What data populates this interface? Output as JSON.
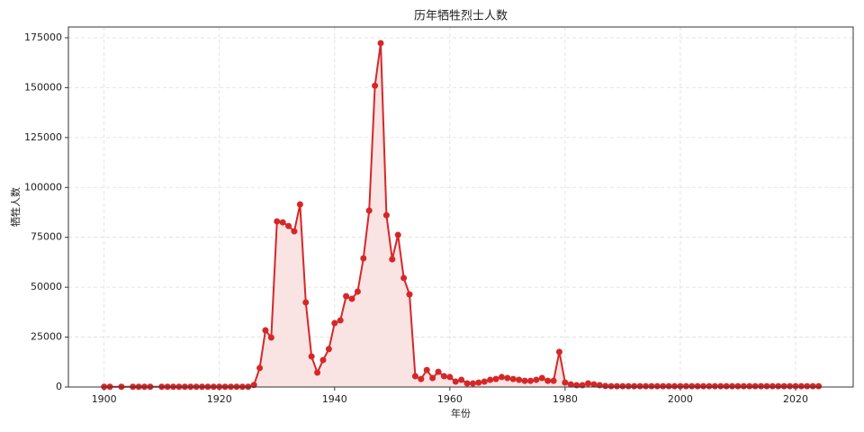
{
  "chart_data": {
    "type": "line",
    "title": "历年牺牲烈士人数",
    "x_label": "年份",
    "y_label": "牺牲人数",
    "x": [
      1900,
      1901,
      1903,
      1905,
      1906,
      1907,
      1908,
      1910,
      1911,
      1912,
      1913,
      1914,
      1915,
      1916,
      1917,
      1918,
      1919,
      1920,
      1921,
      1922,
      1923,
      1924,
      1925,
      1926,
      1927,
      1928,
      1929,
      1930,
      1931,
      1932,
      1933,
      1934,
      1935,
      1936,
      1937,
      1938,
      1939,
      1940,
      1941,
      1942,
      1943,
      1944,
      1945,
      1946,
      1947,
      1948,
      1949,
      1950,
      1951,
      1952,
      1953,
      1954,
      1955,
      1956,
      1957,
      1958,
      1959,
      1960,
      1961,
      1962,
      1963,
      1964,
      1965,
      1966,
      1967,
      1968,
      1969,
      1970,
      1971,
      1972,
      1973,
      1974,
      1975,
      1976,
      1977,
      1978,
      1979,
      1980,
      1981,
      1982,
      1983,
      1984,
      1985,
      1986,
      1987,
      1988,
      1989,
      1990,
      1991,
      1992,
      1993,
      1994,
      1995,
      1996,
      1997,
      1998,
      1999,
      2000,
      2001,
      2002,
      2003,
      2004,
      2005,
      2006,
      2007,
      2008,
      2009,
      2010,
      2011,
      2012,
      2013,
      2014,
      2015,
      2016,
      2017,
      2018,
      2019,
      2020,
      2021,
      2022,
      2023,
      2024
    ],
    "series": [
      {
        "name": "牺牲人数",
        "color": "#d62728",
        "fill_color": "#f9e3e3",
        "values": [
          100,
          100,
          100,
          100,
          100,
          100,
          100,
          100,
          100,
          100,
          100,
          100,
          100,
          100,
          100,
          100,
          100,
          100,
          100,
          100,
          100,
          100,
          100,
          1000,
          9500,
          28400,
          24800,
          83000,
          82500,
          80700,
          78000,
          91500,
          42400,
          15300,
          7200,
          13500,
          19000,
          32000,
          33400,
          45500,
          44200,
          47800,
          64500,
          88400,
          151000,
          172300,
          86100,
          64000,
          76200,
          54600,
          46400,
          5400,
          4000,
          8500,
          4500,
          7600,
          5400,
          5000,
          2700,
          3600,
          1800,
          1800,
          2200,
          2700,
          3600,
          4000,
          5000,
          4500,
          4000,
          3600,
          3100,
          3100,
          3600,
          4500,
          3100,
          3100,
          17600,
          2200,
          1300,
          900,
          900,
          1800,
          1300,
          900,
          500,
          400,
          400,
          400,
          400,
          400,
          400,
          400,
          400,
          400,
          400,
          400,
          400,
          400,
          400,
          400,
          400,
          400,
          400,
          400,
          400,
          400,
          400,
          400,
          400,
          400,
          400,
          400,
          400,
          400,
          400,
          400,
          400,
          400,
          400,
          400,
          400,
          400
        ]
      }
    ],
    "xlim": [
      1893.8,
      2030
    ],
    "xticks": [
      1900,
      1920,
      1940,
      1960,
      1980,
      2000,
      2020
    ],
    "ylim": [
      0,
      180400
    ],
    "yticks": [
      0,
      25000,
      50000,
      75000,
      100000,
      125000,
      150000,
      175000
    ],
    "grid": true
  }
}
